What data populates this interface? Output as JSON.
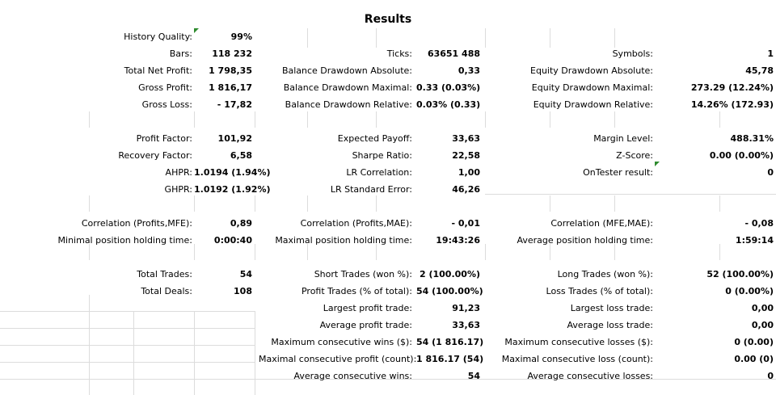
{
  "report": {
    "title": "Results"
  },
  "rows": [
    [
      {
        "label": "History Quality:",
        "value": "99%"
      },
      {
        "label": "",
        "value": ""
      },
      {
        "label": "",
        "value": ""
      }
    ],
    [
      {
        "label": "Bars:",
        "value": "118 232"
      },
      {
        "label": "Ticks:",
        "value": "63651 488"
      },
      {
        "label": "Symbols:",
        "value": "1"
      }
    ],
    [
      {
        "label": "Total Net Profit:",
        "value": "1 798,35"
      },
      {
        "label": "Balance Drawdown Absolute:",
        "value": "0,33"
      },
      {
        "label": "Equity Drawdown Absolute:",
        "value": "45,78"
      }
    ],
    [
      {
        "label": "Gross Profit:",
        "value": "1 816,17"
      },
      {
        "label": "Balance Drawdown Maximal:",
        "value": "0.33 (0.03%)"
      },
      {
        "label": "Equity Drawdown Maximal:",
        "value": "273.29 (12.24%)"
      }
    ],
    [
      {
        "label": "Gross Loss:",
        "value": "- 17,82"
      },
      {
        "label": "Balance Drawdown Relative:",
        "value": "0.03% (0.33)"
      },
      {
        "label": "Equity Drawdown Relative:",
        "value": "14.26% (172.93)"
      }
    ],
    [
      {
        "label": "",
        "value": ""
      },
      {
        "label": "",
        "value": ""
      },
      {
        "label": "",
        "value": ""
      }
    ],
    [
      {
        "label": "Profit Factor:",
        "value": "101,92"
      },
      {
        "label": "Expected Payoff:",
        "value": "33,63"
      },
      {
        "label": "Margin Level:",
        "value": "488.31%"
      }
    ],
    [
      {
        "label": "Recovery Factor:",
        "value": "6,58"
      },
      {
        "label": "Sharpe Ratio:",
        "value": "22,58"
      },
      {
        "label": "Z-Score:",
        "value": "0.00 (0.00%)"
      }
    ],
    [
      {
        "label": "AHPR:",
        "value": "1.0194 (1.94%)"
      },
      {
        "label": "LR Correlation:",
        "value": "1,00"
      },
      {
        "label": "OnTester result:",
        "value": "0"
      }
    ],
    [
      {
        "label": "GHPR:",
        "value": "1.0192 (1.92%)"
      },
      {
        "label": "LR Standard Error:",
        "value": "46,26"
      },
      {
        "label": "",
        "value": ""
      }
    ],
    [
      {
        "label": "",
        "value": ""
      },
      {
        "label": "",
        "value": ""
      },
      {
        "label": "",
        "value": ""
      }
    ],
    [
      {
        "label": "Correlation (Profits,MFE):",
        "value": "0,89"
      },
      {
        "label": "Correlation (Profits,MAE):",
        "value": "- 0,01"
      },
      {
        "label": "Correlation (MFE,MAE):",
        "value": "- 0,08"
      }
    ],
    [
      {
        "label": "Minimal position holding time:",
        "value": "0:00:40"
      },
      {
        "label": "Maximal position holding time:",
        "value": "19:43:26"
      },
      {
        "label": "Average position holding time:",
        "value": "1:59:14"
      }
    ],
    [
      {
        "label": "",
        "value": ""
      },
      {
        "label": "",
        "value": ""
      },
      {
        "label": "",
        "value": ""
      }
    ],
    [
      {
        "label": "Total Trades:",
        "value": "54"
      },
      {
        "label": "Short Trades (won %):",
        "value": "2 (100.00%)"
      },
      {
        "label": "Long Trades (won %):",
        "value": "52 (100.00%)"
      }
    ],
    [
      {
        "label": "Total Deals:",
        "value": "108"
      },
      {
        "label": "Profit Trades (% of total):",
        "value": "54 (100.00%)"
      },
      {
        "label": "Loss Trades (% of total):",
        "value": "0 (0.00%)"
      }
    ],
    [
      {
        "label": "",
        "value": ""
      },
      {
        "label": "Largest profit trade:",
        "value": "91,23"
      },
      {
        "label": "Largest loss trade:",
        "value": "0,00"
      }
    ],
    [
      {
        "label": "",
        "value": ""
      },
      {
        "label": "Average profit trade:",
        "value": "33,63"
      },
      {
        "label": "Average loss trade:",
        "value": "0,00"
      }
    ],
    [
      {
        "label": "",
        "value": ""
      },
      {
        "label": "Maximum consecutive wins ($):",
        "value": "54 (1 816.17)"
      },
      {
        "label": "Maximum consecutive losses ($):",
        "value": "0 (0.00)"
      }
    ],
    [
      {
        "label": "",
        "value": ""
      },
      {
        "label": "Maximal consecutive profit (count):",
        "value": "1 816.17 (54)"
      },
      {
        "label": "Maximal consecutive loss (count):",
        "value": "0.00 (0)"
      }
    ],
    [
      {
        "label": "",
        "value": ""
      },
      {
        "label": "Average consecutive wins:",
        "value": "54"
      },
      {
        "label": "Average consecutive losses:",
        "value": "0"
      }
    ]
  ],
  "indicator_color": "#2e8b2e"
}
